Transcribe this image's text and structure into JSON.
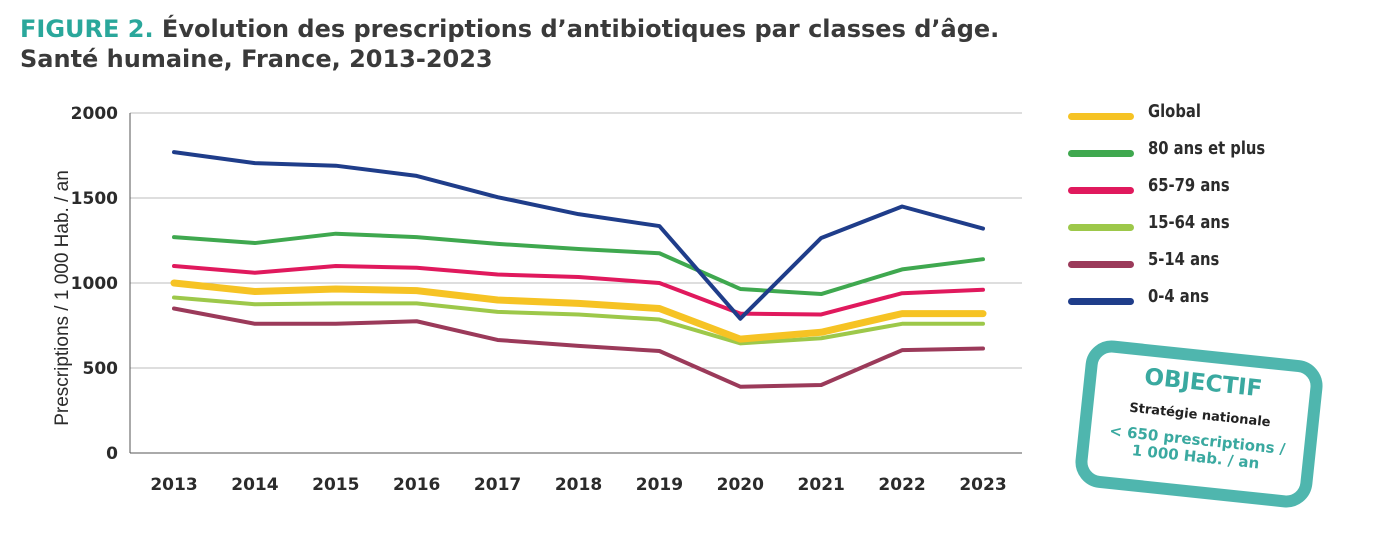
{
  "header": {
    "figure_label": "FIGURE 2.",
    "title_line1": "Évolution des prescriptions d’antibiotiques par classes d’âge.",
    "title_line2": "Santé humaine, France, 2013-2023"
  },
  "colors": {
    "accent": "#2aa79b",
    "global": "#f6c324",
    "80plus": "#3fa84f",
    "65_79": "#e0195d",
    "15_64": "#9dc84a",
    "5_14": "#9b3a5a",
    "0_4": "#1f3d8a",
    "stamp": "#3aa9a0"
  },
  "chart_data": {
    "type": "line",
    "title": "Évolution des prescriptions d’antibiotiques par classes d’âge. Santé humaine, France, 2013-2023",
    "xlabel": "",
    "ylabel": "Prescriptions / 1 000 Hab. / an",
    "ylim": [
      0,
      2000
    ],
    "yticks": [
      0,
      500,
      1000,
      1500,
      2000
    ],
    "grid": "horizontal",
    "legend_position": "right",
    "categories": [
      "2013",
      "2014",
      "2015",
      "2016",
      "2017",
      "2018",
      "2019",
      "2020",
      "2021",
      "2022",
      "2023"
    ],
    "series": [
      {
        "name": "Global",
        "color": "#f6c324",
        "width": 7,
        "values": [
          1000,
          950,
          965,
          955,
          900,
          880,
          850,
          670,
          710,
          820,
          820
        ]
      },
      {
        "name": "80 ans et plus",
        "color": "#3fa84f",
        "width": 4,
        "values": [
          1270,
          1235,
          1290,
          1270,
          1230,
          1200,
          1175,
          965,
          935,
          1080,
          1140
        ]
      },
      {
        "name": "65-79 ans",
        "color": "#e0195d",
        "width": 4,
        "values": [
          1100,
          1060,
          1100,
          1090,
          1050,
          1035,
          1000,
          820,
          815,
          940,
          960
        ]
      },
      {
        "name": "15-64 ans",
        "color": "#9dc84a",
        "width": 4,
        "values": [
          915,
          875,
          880,
          880,
          830,
          815,
          785,
          645,
          675,
          760,
          760
        ]
      },
      {
        "name": "5-14 ans",
        "color": "#9b3a5a",
        "width": 4,
        "values": [
          850,
          760,
          760,
          775,
          665,
          630,
          600,
          390,
          400,
          605,
          615
        ]
      },
      {
        "name": "0-4 ans",
        "color": "#1f3d8a",
        "width": 4,
        "values": [
          1770,
          1705,
          1690,
          1630,
          1505,
          1405,
          1335,
          790,
          1265,
          1450,
          1320
        ]
      }
    ]
  },
  "legend": {
    "items": [
      {
        "label": "Global",
        "color": "#f6c324"
      },
      {
        "label": "80 ans et plus",
        "color": "#3fa84f"
      },
      {
        "label": "65-79 ans",
        "color": "#e0195d"
      },
      {
        "label": "15-64 ans",
        "color": "#9dc84a"
      },
      {
        "label": "5-14 ans",
        "color": "#9b3a5a"
      },
      {
        "label": "0-4 ans",
        "color": "#1f3d8a"
      }
    ]
  },
  "stamp": {
    "title": "OBJECTIF",
    "subtitle": "Stratégie nationale",
    "value_line1": "< 650 prescriptions /",
    "value_line2": "1 000 Hab. / an"
  }
}
